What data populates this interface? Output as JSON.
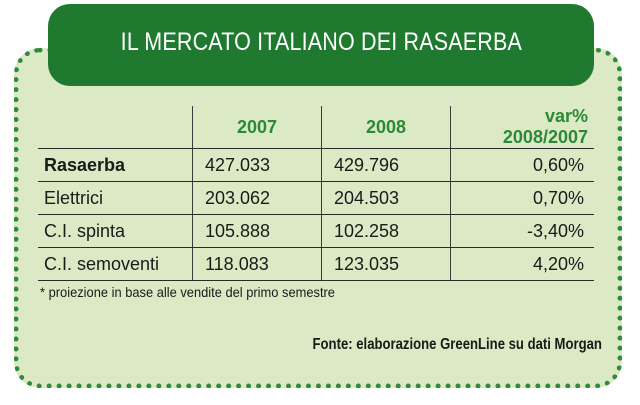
{
  "title": "IL MERCATO ITALIANO DEI RASAERBA",
  "table": {
    "headers": [
      "",
      "2007",
      "2008",
      "var% 2008/2007"
    ],
    "rows": [
      {
        "label": "Rasaerba",
        "y2007": "427.033",
        "y2008": "429.796",
        "var": "0,60%",
        "bold": true
      },
      {
        "label": "Elettrici",
        "y2007": "203.062",
        "y2008": "204.503",
        "var": "0,70%"
      },
      {
        "label": "C.I. spinta",
        "y2007": "105.888",
        "y2008": "102.258",
        "var": "-3,40%"
      },
      {
        "label": "C.I. semoventi",
        "y2007": "118.083",
        "y2008": "123.035",
        "var": "4,20%"
      }
    ]
  },
  "note": "* proiezione in base alle vendite del primo semestre",
  "source": "Fonte: elaborazione GreenLine su dati Morgan",
  "colors": {
    "accent": "#1f7a30",
    "panel": "#dce9c5",
    "header_text": "#2a8a36"
  }
}
